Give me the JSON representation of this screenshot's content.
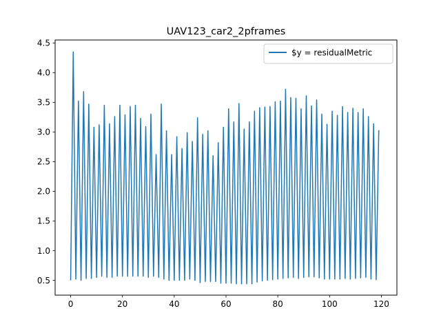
{
  "chart_data": {
    "type": "line",
    "title": "UAV123_car2_2pframes",
    "xlabel": "",
    "ylabel": "",
    "xlim": [
      -6,
      126
    ],
    "ylim": [
      0.25,
      4.55
    ],
    "xticks": [
      0,
      20,
      40,
      60,
      80,
      100,
      120
    ],
    "yticks": [
      0.5,
      1.0,
      1.5,
      2.0,
      2.5,
      3.0,
      3.5,
      4.0,
      4.5
    ],
    "grid": false,
    "legend_position": "upper right",
    "series": [
      {
        "name": "$y = residualMetric",
        "color": "#1f77b4",
        "x": [
          0,
          1,
          2,
          3,
          4,
          5,
          6,
          7,
          8,
          9,
          10,
          11,
          12,
          13,
          14,
          15,
          16,
          17,
          18,
          19,
          20,
          21,
          22,
          23,
          24,
          25,
          26,
          27,
          28,
          29,
          30,
          31,
          32,
          33,
          34,
          35,
          36,
          37,
          38,
          39,
          40,
          41,
          42,
          43,
          44,
          45,
          46,
          47,
          48,
          49,
          50,
          51,
          52,
          53,
          54,
          55,
          56,
          57,
          58,
          59,
          60,
          61,
          62,
          63,
          64,
          65,
          66,
          67,
          68,
          69,
          70,
          71,
          72,
          73,
          74,
          75,
          76,
          77,
          78,
          79,
          80,
          81,
          82,
          83,
          84,
          85,
          86,
          87,
          88,
          89,
          90,
          91,
          92,
          93,
          94,
          95,
          96,
          97,
          98,
          99,
          100,
          101,
          102,
          103,
          104,
          105,
          106,
          107,
          108,
          109,
          110,
          111,
          112,
          113,
          114,
          115,
          116,
          117,
          118,
          119
        ],
        "y": [
          0.5,
          4.35,
          0.52,
          3.52,
          0.5,
          3.68,
          0.53,
          3.47,
          0.53,
          3.08,
          0.55,
          3.12,
          0.57,
          3.45,
          0.55,
          3.14,
          0.55,
          3.26,
          0.57,
          3.45,
          0.57,
          3.29,
          0.57,
          3.43,
          0.57,
          3.45,
          0.57,
          3.23,
          0.57,
          3.09,
          0.55,
          3.3,
          0.57,
          2.62,
          0.55,
          3.47,
          0.52,
          3.02,
          0.5,
          2.62,
          0.5,
          2.92,
          0.5,
          2.72,
          0.5,
          2.99,
          0.52,
          2.84,
          0.5,
          3.24,
          0.46,
          2.96,
          0.48,
          3.02,
          0.48,
          2.6,
          0.48,
          2.82,
          0.45,
          3.08,
          0.45,
          3.39,
          0.45,
          3.17,
          0.44,
          3.48,
          0.44,
          3.05,
          0.44,
          3.17,
          0.44,
          3.35,
          0.47,
          3.41,
          0.49,
          3.42,
          0.5,
          3.43,
          0.51,
          3.51,
          0.52,
          3.52,
          0.53,
          3.72,
          0.54,
          3.58,
          0.55,
          3.57,
          0.53,
          3.39,
          0.55,
          3.61,
          0.56,
          3.44,
          0.56,
          3.54,
          0.54,
          3.3,
          0.52,
          3.13,
          0.52,
          3.35,
          0.52,
          3.28,
          0.52,
          3.43,
          0.53,
          3.33,
          0.52,
          3.4,
          0.53,
          3.33,
          0.54,
          3.39,
          0.55,
          3.26,
          0.52,
          3.14,
          0.51,
          3.03
        ]
      }
    ]
  }
}
